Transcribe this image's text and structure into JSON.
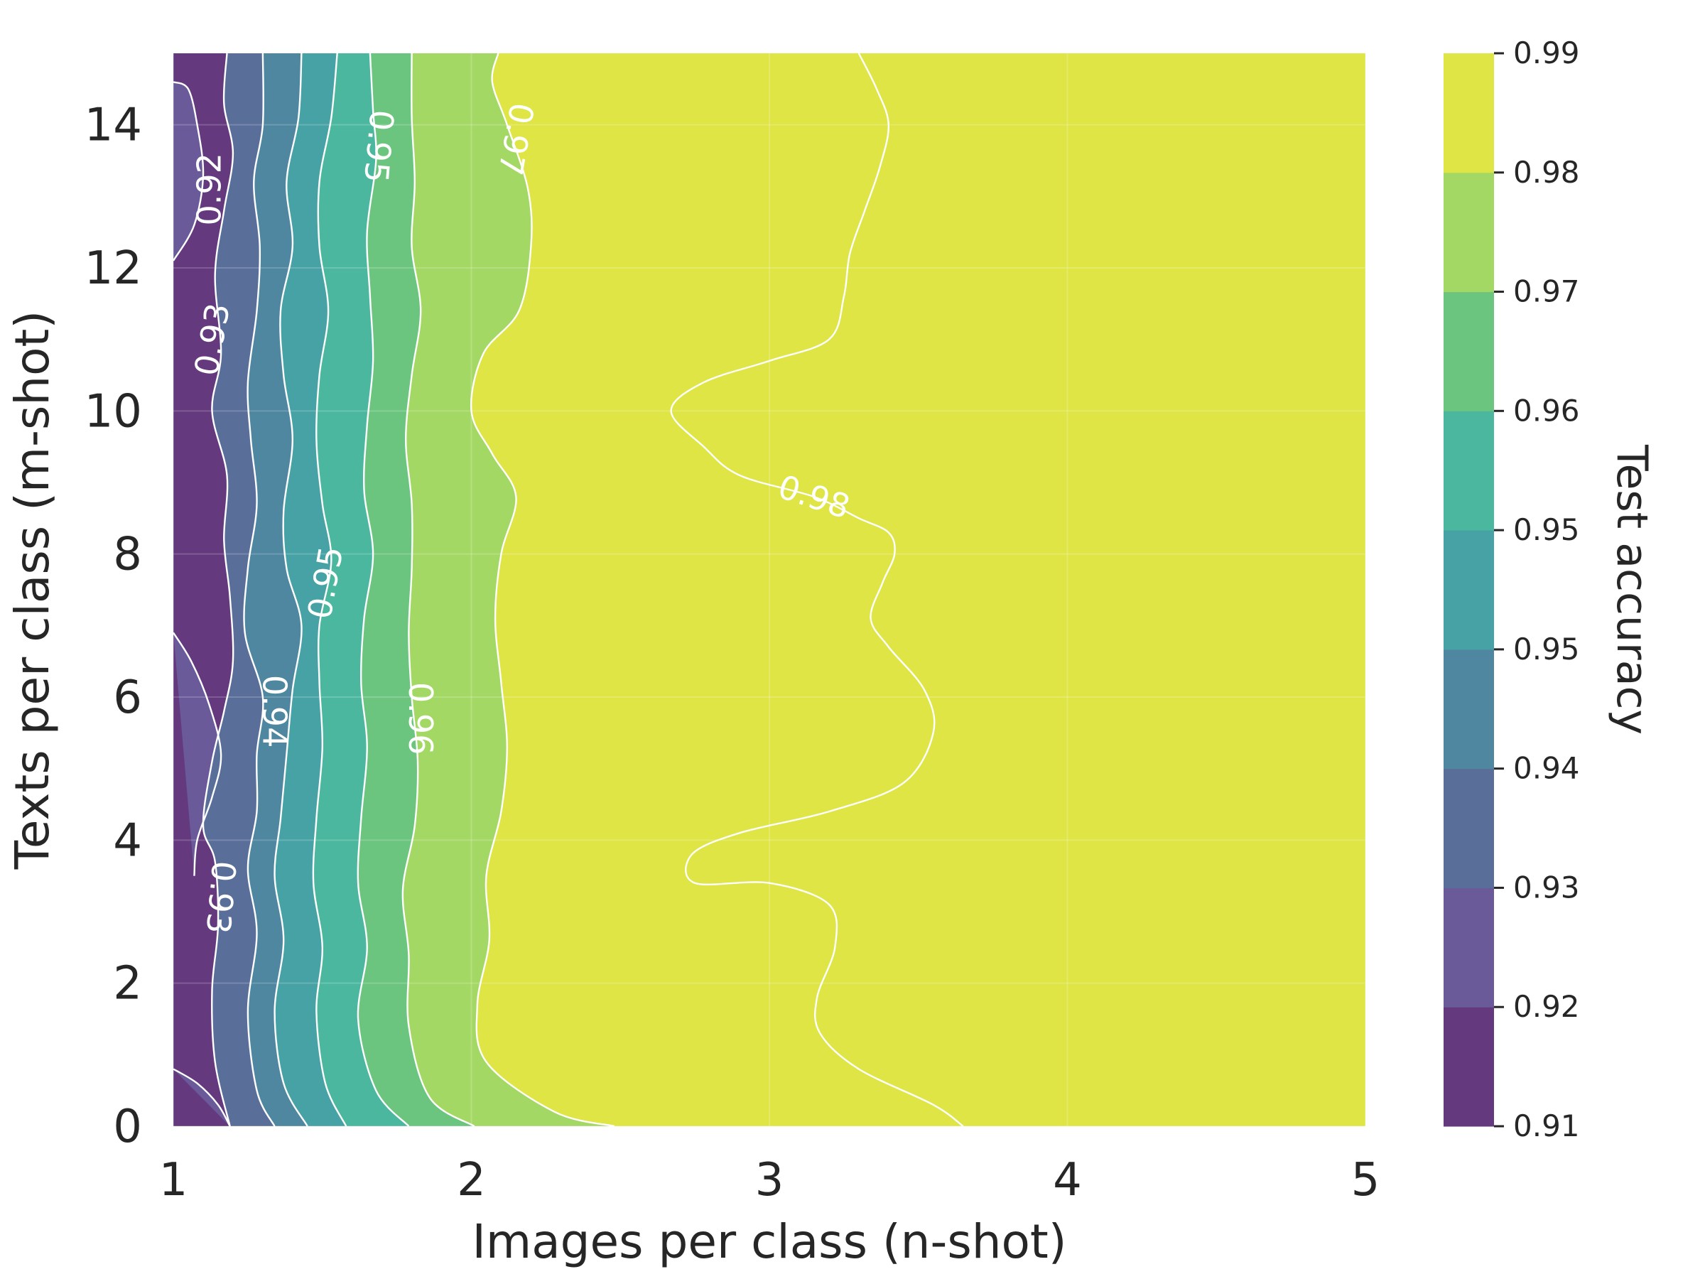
{
  "chart_data": {
    "type": "contour",
    "xlabel": "Images per class (n-shot)",
    "ylabel": "Texts per class (m-shot)",
    "colorbar_label": "Test accuracy",
    "xlim": [
      1,
      5
    ],
    "ylim": [
      0,
      15
    ],
    "x_ticks": [
      {
        "value": 1,
        "label": "1"
      },
      {
        "value": 2,
        "label": "2"
      },
      {
        "value": 3,
        "label": "3"
      },
      {
        "value": 4,
        "label": "4"
      },
      {
        "value": 5,
        "label": "5"
      }
    ],
    "y_ticks": [
      {
        "value": 0,
        "label": "0"
      },
      {
        "value": 2,
        "label": "2"
      },
      {
        "value": 4,
        "label": "4"
      },
      {
        "value": 6,
        "label": "6"
      },
      {
        "value": 8,
        "label": "8"
      },
      {
        "value": 10,
        "label": "10"
      },
      {
        "value": 12,
        "label": "12"
      },
      {
        "value": 14,
        "label": "14"
      }
    ],
    "colorbar_ticks": [
      "0.91",
      "0.92",
      "0.93",
      "0.94",
      "0.95",
      "0.95",
      "0.96",
      "0.97",
      "0.98",
      "0.99"
    ],
    "levels": [
      0.91,
      0.919,
      0.928,
      0.937,
      0.946,
      0.955,
      0.964,
      0.973,
      0.982,
      0.991
    ],
    "level_colors": [
      "#65397e",
      "#6a5a99",
      "#5a6e9a",
      "#4f86a0",
      "#47a2a5",
      "#4ab79e",
      "#6cc57f",
      "#a4d864",
      "#dee545"
    ],
    "grid": true,
    "contour_labels": [
      {
        "text": "0.92",
        "x": 1.12,
        "y": 13.1,
        "rotation": -90
      },
      {
        "text": "0.93",
        "x": 1.13,
        "y": 11.0,
        "rotation": -80
      },
      {
        "text": "0.93",
        "x": 1.16,
        "y": 3.2,
        "rotation": 95
      },
      {
        "text": "0.94",
        "x": 1.34,
        "y": 5.8,
        "rotation": 90
      },
      {
        "text": "0.95",
        "x": 1.69,
        "y": 13.7,
        "rotation": 95
      },
      {
        "text": "0.95",
        "x": 1.51,
        "y": 7.6,
        "rotation": -80
      },
      {
        "text": "0.96",
        "x": 1.83,
        "y": 5.7,
        "rotation": 90
      },
      {
        "text": "0.97",
        "x": 2.15,
        "y": 13.8,
        "rotation": 100
      },
      {
        "text": "0.98",
        "x": 3.15,
        "y": 8.8,
        "rotation": 18
      }
    ],
    "contours": [
      {
        "level": 0.919,
        "lines": [
          [
            [
              1.0,
              0.8
            ],
            [
              1.08,
              0.6
            ],
            [
              1.15,
              0.3
            ],
            [
              1.19,
              0.0
            ]
          ],
          [
            [
              1.0,
              6.9
            ],
            [
              1.06,
              6.5
            ],
            [
              1.12,
              5.9
            ],
            [
              1.16,
              5.2
            ],
            [
              1.13,
              4.6
            ],
            [
              1.08,
              4.0
            ],
            [
              1.07,
              3.5
            ]
          ],
          [
            [
              1.0,
              12.1
            ],
            [
              1.07,
              12.6
            ],
            [
              1.1,
              13.3
            ],
            [
              1.08,
              14.0
            ],
            [
              1.05,
              14.5
            ],
            [
              1.0,
              14.6
            ]
          ]
        ]
      },
      {
        "level": 0.928,
        "lines": [
          [
            [
              1.19,
              0.0
            ],
            [
              1.14,
              0.9
            ],
            [
              1.13,
              1.9
            ],
            [
              1.15,
              2.8
            ],
            [
              1.14,
              3.7
            ],
            [
              1.1,
              4.2
            ],
            [
              1.13,
              5.1
            ],
            [
              1.17,
              5.8
            ],
            [
              1.2,
              6.5
            ],
            [
              1.19,
              7.4
            ],
            [
              1.17,
              8.2
            ],
            [
              1.18,
              9.1
            ],
            [
              1.13,
              10.0
            ],
            [
              1.16,
              10.8
            ],
            [
              1.14,
              11.9
            ],
            [
              1.17,
              12.8
            ],
            [
              1.2,
              13.6
            ],
            [
              1.17,
              14.3
            ],
            [
              1.18,
              15.0
            ]
          ]
        ]
      },
      {
        "level": 0.937,
        "lines": [
          [
            [
              1.34,
              0.0
            ],
            [
              1.28,
              0.5
            ],
            [
              1.25,
              1.6
            ],
            [
              1.28,
              2.7
            ],
            [
              1.25,
              3.6
            ],
            [
              1.28,
              4.4
            ],
            [
              1.28,
              5.2
            ],
            [
              1.3,
              6.0
            ],
            [
              1.24,
              6.9
            ],
            [
              1.25,
              7.8
            ],
            [
              1.28,
              8.7
            ],
            [
              1.26,
              9.6
            ],
            [
              1.25,
              10.4
            ],
            [
              1.28,
              11.4
            ],
            [
              1.29,
              12.3
            ],
            [
              1.27,
              13.2
            ],
            [
              1.3,
              14.0
            ],
            [
              1.3,
              15.0
            ]
          ]
        ]
      },
      {
        "level": 0.946,
        "lines": [
          [
            [
              1.45,
              0.0
            ],
            [
              1.37,
              0.6
            ],
            [
              1.34,
              1.6
            ],
            [
              1.37,
              2.6
            ],
            [
              1.34,
              3.5
            ],
            [
              1.36,
              4.3
            ],
            [
              1.38,
              5.2
            ],
            [
              1.4,
              6.1
            ],
            [
              1.43,
              7.0
            ],
            [
              1.38,
              7.8
            ],
            [
              1.37,
              8.6
            ],
            [
              1.4,
              9.6
            ],
            [
              1.37,
              10.5
            ],
            [
              1.36,
              11.4
            ],
            [
              1.4,
              12.3
            ],
            [
              1.38,
              13.2
            ],
            [
              1.42,
              14.1
            ],
            [
              1.43,
              15.0
            ]
          ]
        ]
      },
      {
        "level": 0.955,
        "lines": [
          [
            [
              1.58,
              0.0
            ],
            [
              1.51,
              0.6
            ],
            [
              1.48,
              1.6
            ],
            [
              1.5,
              2.5
            ],
            [
              1.47,
              3.4
            ],
            [
              1.48,
              4.3
            ],
            [
              1.5,
              5.3
            ],
            [
              1.49,
              6.2
            ],
            [
              1.49,
              7.0
            ],
            [
              1.53,
              7.9
            ],
            [
              1.5,
              8.7
            ],
            [
              1.48,
              9.6
            ],
            [
              1.49,
              10.5
            ],
            [
              1.52,
              11.4
            ],
            [
              1.49,
              12.3
            ],
            [
              1.49,
              13.2
            ],
            [
              1.53,
              14.1
            ],
            [
              1.55,
              15.0
            ]
          ]
        ]
      },
      {
        "level": 0.964,
        "lines": [
          [
            [
              1.79,
              0.0
            ],
            [
              1.68,
              0.5
            ],
            [
              1.62,
              1.5
            ],
            [
              1.65,
              2.5
            ],
            [
              1.62,
              3.4
            ],
            [
              1.63,
              4.3
            ],
            [
              1.65,
              5.3
            ],
            [
              1.63,
              6.2
            ],
            [
              1.64,
              7.1
            ],
            [
              1.67,
              8.0
            ],
            [
              1.64,
              8.9
            ],
            [
              1.65,
              9.8
            ],
            [
              1.67,
              10.7
            ],
            [
              1.66,
              11.6
            ],
            [
              1.65,
              12.5
            ],
            [
              1.68,
              13.5
            ],
            [
              1.67,
              14.2
            ],
            [
              1.66,
              15.0
            ]
          ]
        ]
      },
      {
        "level": 0.973,
        "lines": [
          [
            [
              2.01,
              0.0
            ],
            [
              1.86,
              0.4
            ],
            [
              1.79,
              1.4
            ],
            [
              1.79,
              2.4
            ],
            [
              1.77,
              3.3
            ],
            [
              1.81,
              4.2
            ],
            [
              1.82,
              5.1
            ],
            [
              1.8,
              6.0
            ],
            [
              1.79,
              6.9
            ],
            [
              1.8,
              7.8
            ],
            [
              1.8,
              8.7
            ],
            [
              1.78,
              9.6
            ],
            [
              1.8,
              10.5
            ],
            [
              1.83,
              11.4
            ],
            [
              1.8,
              12.3
            ],
            [
              1.81,
              13.2
            ],
            [
              1.8,
              14.1
            ],
            [
              1.8,
              15.0
            ]
          ]
        ]
      },
      {
        "level": 0.982,
        "lines": [
          [
            [
              2.48,
              0.0
            ],
            [
              2.28,
              0.2
            ],
            [
              2.05,
              0.9
            ],
            [
              2.02,
              1.7
            ],
            [
              2.06,
              2.6
            ],
            [
              2.05,
              3.5
            ],
            [
              2.1,
              4.4
            ],
            [
              2.12,
              5.3
            ],
            [
              2.1,
              6.2
            ],
            [
              2.08,
              7.1
            ],
            [
              2.1,
              8.0
            ],
            [
              2.15,
              8.8
            ],
            [
              2.07,
              9.4
            ],
            [
              2.0,
              10.0
            ],
            [
              2.04,
              10.8
            ],
            [
              2.16,
              11.4
            ],
            [
              2.2,
              12.3
            ],
            [
              2.19,
              13.1
            ],
            [
              2.12,
              14.0
            ],
            [
              2.07,
              14.6
            ],
            [
              2.09,
              15.0
            ]
          ]
        ]
      },
      {
        "level": 0.991,
        "lines": [
          [
            [
              3.65,
              0.0
            ],
            [
              3.55,
              0.3
            ],
            [
              3.3,
              0.8
            ],
            [
              3.17,
              1.3
            ],
            [
              3.16,
              1.8
            ],
            [
              3.22,
              2.5
            ],
            [
              3.2,
              3.1
            ],
            [
              3.0,
              3.4
            ],
            [
              2.75,
              3.4
            ],
            [
              2.74,
              3.8
            ],
            [
              2.9,
              4.1
            ],
            [
              3.2,
              4.4
            ],
            [
              3.45,
              4.8
            ],
            [
              3.55,
              5.5
            ],
            [
              3.52,
              6.1
            ],
            [
              3.4,
              6.7
            ],
            [
              3.34,
              7.1
            ],
            [
              3.38,
              7.6
            ],
            [
              3.42,
              8.0
            ],
            [
              3.4,
              8.3
            ],
            [
              3.3,
              8.5
            ],
            [
              3.15,
              8.8
            ],
            [
              2.9,
              9.1
            ],
            [
              2.78,
              9.5
            ],
            [
              2.67,
              10.0
            ],
            [
              2.78,
              10.4
            ],
            [
              3.0,
              10.7
            ],
            [
              3.2,
              11.0
            ],
            [
              3.25,
              11.6
            ],
            [
              3.27,
              12.2
            ],
            [
              3.32,
              12.8
            ],
            [
              3.37,
              13.4
            ],
            [
              3.4,
              14.0
            ],
            [
              3.36,
              14.5
            ],
            [
              3.3,
              15.0
            ]
          ]
        ]
      }
    ]
  }
}
